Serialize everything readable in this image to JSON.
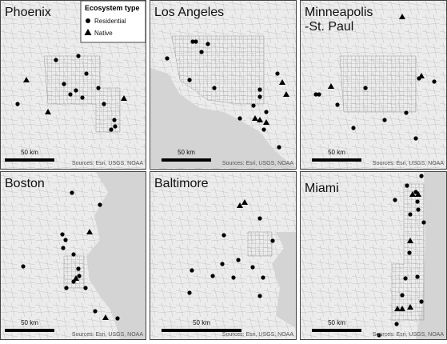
{
  "legend": {
    "title": "Ecosystem type",
    "items": [
      "Residential",
      "Native"
    ]
  },
  "panels": [
    {
      "title_lines": [
        "Phoenix"
      ],
      "scale_label": "50 km",
      "sources": "Sources: Esri, USGS, NOAA"
    },
    {
      "title_lines": [
        "Los Angeles"
      ],
      "scale_label": "50 km",
      "sources": "Sources: Esri, USGS, NOAA"
    },
    {
      "title_lines": [
        "Minneapolis",
        "-St. Paul"
      ],
      "scale_label": "50 km",
      "sources": "Sources: Esri, USGS, NOAA"
    },
    {
      "title_lines": [
        "Boston"
      ],
      "scale_label": "50 km",
      "sources": "Sources: Esri, USGS, NOAA"
    },
    {
      "title_lines": [
        "Baltimore"
      ],
      "scale_label": "50 km",
      "sources": "Sources: Esri, USGS, NOAA"
    },
    {
      "title_lines": [
        "Miami"
      ],
      "scale_label": "50 km",
      "sources": "Sources: Esri, USGS, NOAA"
    }
  ]
}
